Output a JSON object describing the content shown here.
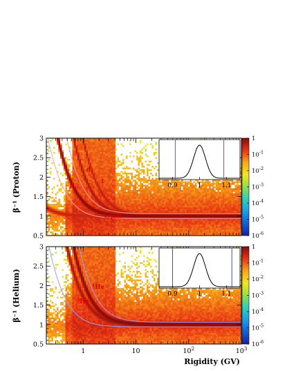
{
  "colors": {
    "heatmap_scale": [
      "#1a1f9a",
      "#1560d8",
      "#1aa0e6",
      "#2bd0c0",
      "#8ee04c",
      "#f0e81c",
      "#f8a818",
      "#e83414",
      "#8a0a08"
    ],
    "proton_band_edges": "#ff9e9e",
    "helium_band_edges": "#9aa0ff",
    "inset_proton_cut": "#e03030",
    "inset_helium_cut": "#3050e0",
    "annotation": "#e00000"
  },
  "x_axis": {
    "title": "Rigidity (GV)",
    "scale": "log",
    "range": [
      0.2,
      1000
    ],
    "ticks": [
      {
        "value": 1,
        "label": "1"
      },
      {
        "value": 10,
        "label": "10"
      },
      {
        "value": 100,
        "label": "10",
        "sup": "2"
      },
      {
        "value": 1000,
        "label": "10",
        "sup": "3"
      }
    ]
  },
  "chart_data": [
    {
      "type": "heatmap",
      "panel": "proton",
      "ylabel": "β⁻¹ (Proton)",
      "ylim": [
        0.5,
        3
      ],
      "y_ticks": [
        "3",
        "2.5",
        "2",
        "1.5",
        "1",
        "0.5"
      ],
      "z_scale": "log",
      "z_range": [
        1e-06,
        1
      ],
      "colorbar_ticks": [
        {
          "base": "1",
          "exp": ""
        },
        {
          "base": "10",
          "exp": "-1"
        },
        {
          "base": "10",
          "exp": "-2"
        },
        {
          "base": "10",
          "exp": "-3"
        },
        {
          "base": "10",
          "exp": "-4"
        },
        {
          "base": "10",
          "exp": "-5"
        },
        {
          "base": "10",
          "exp": "-6"
        }
      ],
      "bands": [
        {
          "label": "e/μ/π",
          "mass_gev": 0.14,
          "intensity": 0.35,
          "annotation_at": {
            "x": 2.5,
            "y": 0.95
          }
        },
        {
          "label": "p",
          "mass_gev": 0.938,
          "intensity": 1.0,
          "annotation_at": {
            "x": 0.55,
            "y": 1.75
          }
        },
        {
          "label": "d",
          "mass_gev": 1.876,
          "intensity": 0.55,
          "annotation_at": {
            "x": 1.15,
            "y": 2.15
          }
        },
        {
          "label": "t",
          "mass_gev": 2.81,
          "intensity": 0.4,
          "annotation_at": {
            "x": 2.2,
            "y": 1.85
          }
        }
      ],
      "selection_edges_mass_gev": [
        0.62,
        1.34
      ],
      "inset": {
        "x_ticks": [
          "0.9",
          "1",
          "1.1"
        ],
        "x_range": [
          0.85,
          1.15
        ],
        "peak": 1.0,
        "sigma": 0.022,
        "cut_lines": [
          0.91,
          1.09
        ],
        "cut_color": "#e03030"
      }
    },
    {
      "type": "heatmap",
      "panel": "helium",
      "ylabel": "β⁻¹ (Helium)",
      "ylim": [
        0.5,
        3
      ],
      "y_ticks": [
        "3",
        "2.5",
        "2",
        "1.5",
        "1",
        "0.5"
      ],
      "z_scale": "log",
      "z_range": [
        1e-06,
        1
      ],
      "colorbar_ticks": [
        {
          "base": "1",
          "exp": ""
        },
        {
          "base": "10",
          "exp": "-1"
        },
        {
          "base": "10",
          "exp": "-2"
        },
        {
          "base": "10",
          "exp": "-3"
        },
        {
          "base": "10",
          "exp": "-4"
        },
        {
          "base": "10",
          "exp": "-5"
        },
        {
          "base": "10",
          "exp": "-6"
        }
      ],
      "bands": [
        {
          "label": "³He",
          "pre": "3",
          "name": "He",
          "mass_gev": 1.4,
          "intensity": 0.6,
          "annotation_at": {
            "x": 0.75,
            "y": 1.55
          }
        },
        {
          "label": "⁴He",
          "pre": "4",
          "name": "He",
          "mass_gev": 1.86,
          "intensity": 1.0,
          "annotation_at": {
            "x": 1.45,
            "y": 1.92
          }
        }
      ],
      "selection_edges_mass_gev": [
        0.65,
        2.3
      ],
      "inset": {
        "x_ticks": [
          "0.9",
          "1",
          "1.1"
        ],
        "x_range": [
          0.85,
          1.15
        ],
        "peak": 1.0,
        "sigma": 0.022,
        "cut_lines": [
          0.9,
          1.12
        ],
        "cut_color": "#3050e0"
      }
    }
  ]
}
